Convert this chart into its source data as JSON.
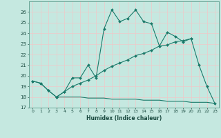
{
  "xlabel": "Humidex (Indice chaleur)",
  "bg_color": "#c5e8e0",
  "grid_color": "#f0c8c8",
  "line_color": "#1a7a6a",
  "x_values": [
    0,
    1,
    2,
    3,
    4,
    5,
    6,
    7,
    8,
    9,
    10,
    11,
    12,
    13,
    14,
    15,
    16,
    17,
    18,
    19,
    20,
    21,
    22,
    23
  ],
  "curve1": [
    19.5,
    19.3,
    18.6,
    18.0,
    18.5,
    19.8,
    19.8,
    21.0,
    19.8,
    24.4,
    26.2,
    25.1,
    25.4,
    26.2,
    25.1,
    24.9,
    22.8,
    24.1,
    23.7,
    23.2,
    23.5,
    21.0,
    19.0,
    17.4
  ],
  "curve2": [
    19.5,
    19.3,
    18.6,
    18.0,
    18.5,
    19.0,
    19.3,
    19.6,
    20.0,
    20.5,
    20.9,
    21.2,
    21.5,
    21.9,
    22.1,
    22.4,
    22.8,
    22.9,
    23.2,
    23.3,
    23.5,
    null,
    null,
    null
  ],
  "curve3": [
    null,
    null,
    null,
    18.0,
    18.0,
    18.0,
    18.0,
    17.9,
    17.9,
    17.9,
    17.8,
    17.8,
    17.8,
    17.8,
    17.7,
    17.7,
    17.7,
    17.6,
    17.6,
    17.6,
    17.5,
    17.5,
    17.5,
    17.4
  ],
  "ylim": [
    17,
    27
  ],
  "xlim": [
    -0.5,
    23.5
  ],
  "yticks": [
    17,
    18,
    19,
    20,
    21,
    22,
    23,
    24,
    25,
    26
  ],
  "xticks": [
    0,
    1,
    2,
    3,
    4,
    5,
    6,
    7,
    8,
    9,
    10,
    11,
    12,
    13,
    14,
    15,
    16,
    17,
    18,
    19,
    20,
    21,
    22,
    23
  ]
}
